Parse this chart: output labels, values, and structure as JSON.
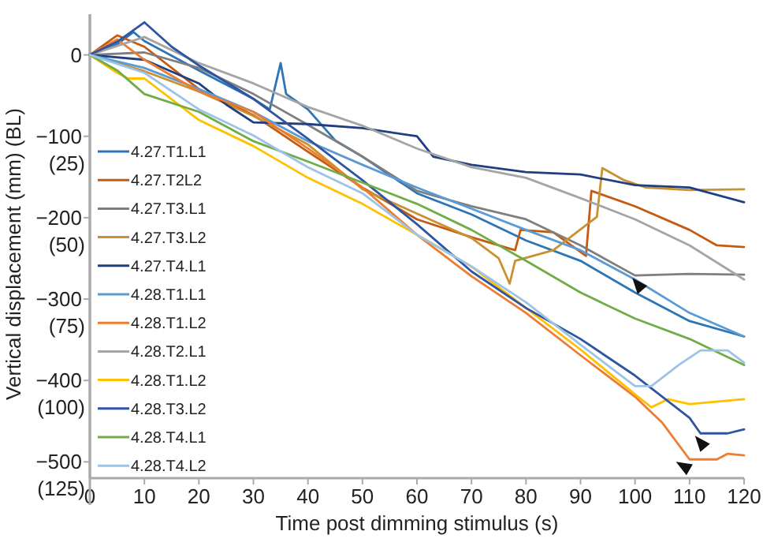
{
  "chart_data": {
    "type": "line",
    "xlabel": "Time post dimming stimulus (s)",
    "ylabel": "Vertical displacement (mm) (BL)",
    "xlim": [
      0,
      120
    ],
    "ylim": [
      -520,
      50
    ],
    "xticks": [
      0,
      10,
      20,
      30,
      40,
      50,
      60,
      70,
      80,
      90,
      100,
      110,
      {
        "value": 120,
        "label": "120"
      }
    ],
    "yticks": [
      0,
      {
        "value": -100,
        "label": "−100"
      },
      {
        "value": -200,
        "label": "−200"
      },
      {
        "value": -300,
        "label": "−300"
      },
      {
        "value": -400,
        "label": "−400"
      },
      {
        "value": -500,
        "label": "−500"
      }
    ],
    "y2lim": [
      130,
      -20.7
    ],
    "y2ticks": [
      {
        "value": 25,
        "label": "(25)"
      },
      {
        "value": 50,
        "label": "(50)"
      },
      {
        "value": 75,
        "label": "(75)"
      },
      {
        "value": 100,
        "label": "(100)"
      },
      {
        "value": 125,
        "label": "(125)"
      }
    ],
    "grid": false,
    "legend": "left",
    "marker": "none",
    "line_style": "solid",
    "series": [
      {
        "name": "4.27.T1.L1",
        "color": "#2e75b6",
        "x": [
          0,
          5,
          8,
          10,
          20,
          30,
          33,
          35,
          36,
          40,
          45,
          50,
          60,
          70,
          80,
          90,
          100,
          110,
          120
        ],
        "values": [
          0,
          13,
          28,
          17,
          -19,
          -54,
          -67,
          -10,
          -48,
          -67,
          -105,
          -125,
          -170,
          -196,
          -228,
          -253,
          -292,
          -327,
          -346
        ]
      },
      {
        "name": "4.27.T2L2",
        "color": "#c55a11",
        "x": [
          0,
          5,
          10,
          20,
          30,
          40,
          50,
          60,
          70,
          78,
          79,
          85,
          91,
          92,
          100,
          110,
          115,
          120
        ],
        "values": [
          0,
          24,
          10,
          -42,
          -74,
          -119,
          -163,
          -202,
          -224,
          -240,
          -215,
          -218,
          -247,
          -167,
          -186,
          -215,
          -234,
          -236
        ]
      },
      {
        "name": "4.27.T3.L1",
        "color": "#7f7f7f",
        "x": [
          0,
          10,
          20,
          30,
          40,
          50,
          60,
          70,
          80,
          90,
          100,
          110,
          120
        ],
        "values": [
          0,
          3,
          -16,
          -48,
          -86,
          -125,
          -167,
          -186,
          -202,
          -234,
          -271,
          -269,
          -270
        ]
      },
      {
        "name": "4.27.T3.L2",
        "color": "#c9912f",
        "x": [
          0,
          10,
          20,
          30,
          40,
          50,
          60,
          70,
          75,
          77,
          78,
          85,
          93,
          94,
          98,
          102,
          110,
          120
        ],
        "values": [
          0,
          -20,
          -45,
          -75,
          -110,
          -165,
          -195,
          -225,
          -250,
          -281,
          -253,
          -240,
          -199,
          -139,
          -154,
          -163,
          -166,
          -165
        ]
      },
      {
        "name": "4.27.T4.L1",
        "color": "#203f80",
        "x": [
          0,
          10,
          20,
          25,
          30,
          40,
          50,
          60,
          63,
          70,
          80,
          90,
          100,
          110,
          120
        ],
        "values": [
          0,
          -6,
          -35,
          -61,
          -83,
          -85,
          -90,
          -100,
          -125,
          -135,
          -144,
          -147,
          -160,
          -163,
          -181
        ]
      },
      {
        "name": "4.28.T1.L1",
        "color": "#5b9bd5",
        "x": [
          0,
          10,
          20,
          30,
          40,
          50,
          60,
          70,
          80,
          90,
          100,
          110,
          120
        ],
        "values": [
          0,
          -16,
          -42,
          -70,
          -106,
          -135,
          -163,
          -189,
          -215,
          -240,
          -276,
          -317,
          -346
        ]
      },
      {
        "name": "4.28.T1.L2",
        "color": "#ed7d31",
        "x": [
          0,
          5,
          10,
          20,
          30,
          40,
          50,
          60,
          70,
          80,
          90,
          100,
          105,
          110,
          115,
          117,
          120
        ],
        "values": [
          0,
          19,
          -6,
          -45,
          -70,
          -115,
          -163,
          -221,
          -272,
          -317,
          -369,
          -420,
          -452,
          -497,
          -497,
          -490,
          -492
        ]
      },
      {
        "name": "4.28.T2.L1",
        "color": "#a5a5a5",
        "x": [
          0,
          10,
          20,
          30,
          40,
          50,
          60,
          70,
          80,
          90,
          100,
          110,
          120
        ],
        "values": [
          0,
          22,
          -10,
          -35,
          -64,
          -87,
          -115,
          -138,
          -151,
          -176,
          -202,
          -234,
          -276
        ]
      },
      {
        "name": "4.28.T1.L2",
        "color": "#ffc000",
        "x": [
          0,
          5,
          7,
          10,
          20,
          30,
          40,
          50,
          60,
          70,
          80,
          90,
          100,
          103,
          106,
          110,
          120
        ],
        "values": [
          0,
          -22,
          -29,
          -29,
          -80,
          -112,
          -151,
          -183,
          -221,
          -260,
          -311,
          -362,
          -417,
          -433,
          -423,
          -429,
          -423
        ]
      },
      {
        "name": "4.28.T3.L2",
        "color": "#2f55a0",
        "x": [
          0,
          5,
          10,
          15,
          20,
          30,
          40,
          50,
          60,
          70,
          80,
          90,
          100,
          110,
          112,
          117,
          120
        ],
        "values": [
          0,
          16,
          40,
          10,
          -13,
          -54,
          -103,
          -154,
          -208,
          -266,
          -311,
          -349,
          -394,
          -446,
          -465,
          -465,
          -460
        ]
      },
      {
        "name": "4.28.T4.L1",
        "color": "#70ad47",
        "x": [
          0,
          5,
          10,
          20,
          30,
          40,
          50,
          60,
          70,
          80,
          90,
          100,
          110,
          120
        ],
        "values": [
          0,
          -19,
          -48,
          -70,
          -106,
          -131,
          -157,
          -183,
          -215,
          -253,
          -292,
          -324,
          -349,
          -381
        ]
      },
      {
        "name": "4.28.T4.L2",
        "color": "#9dc3e6",
        "x": [
          0,
          10,
          20,
          30,
          40,
          50,
          60,
          70,
          80,
          90,
          100,
          103,
          108,
          112,
          117,
          120
        ],
        "values": [
          0,
          -22,
          -67,
          -99,
          -138,
          -170,
          -221,
          -260,
          -304,
          -356,
          -407,
          -407,
          -381,
          -363,
          -363,
          -378
        ]
      }
    ]
  }
}
